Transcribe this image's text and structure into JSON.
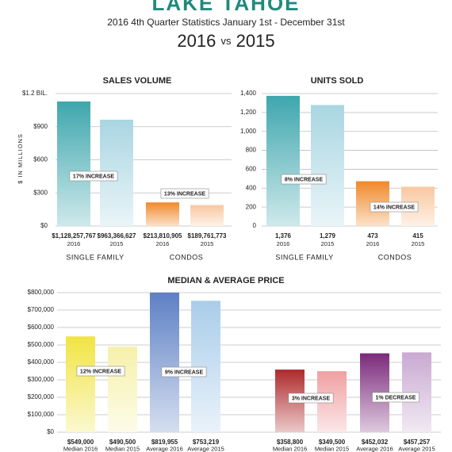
{
  "header": {
    "title": "LAKE TAHOE",
    "subtitle": "2016 4th Quarter Statistics January 1st - December 31st",
    "heading": [
      "2016",
      "vs",
      "2015"
    ]
  },
  "chart_data": [
    {
      "type": "bar",
      "title": "SALES VOLUME",
      "y_label": "$ IN MILLIONS",
      "categories": [
        "2016",
        "2015",
        "2016",
        "2015"
      ],
      "values": [
        1128.257767,
        963.366627,
        213.810905,
        189.761773
      ],
      "value_labels": [
        "$1,128,257,767",
        "$963,366,627",
        "$213,810,905",
        "$189,761,773"
      ],
      "colors": [
        "#3ea7ae",
        "#a9d6e2",
        "#f0892a",
        "#f9c8a0"
      ],
      "groups": [
        "SINGLE FAMILY",
        "CONDOS"
      ],
      "annotations": [
        "17% INCREASE",
        "13% INCREASE"
      ],
      "ylim": [
        0,
        1200
      ],
      "yticks": [
        {
          "value": 0,
          "label": "$0"
        },
        {
          "value": 300,
          "label": "$300"
        },
        {
          "value": 600,
          "label": "$600"
        },
        {
          "value": 900,
          "label": "$900"
        },
        {
          "value": 1200,
          "label": "$1.2 BIL."
        }
      ],
      "grid": true
    },
    {
      "type": "bar",
      "title": "UNITS SOLD",
      "categories": [
        "2016",
        "2015",
        "2016",
        "2015"
      ],
      "values": [
        1376,
        1279,
        473,
        415
      ],
      "value_labels": [
        "1,376",
        "1,279",
        "473",
        "415"
      ],
      "colors": [
        "#3ea7ae",
        "#a9d6e2",
        "#f0892a",
        "#f9c8a0"
      ],
      "groups": [
        "SINGLE FAMILY",
        "CONDOS"
      ],
      "annotations": [
        "8% INCREASE",
        "14% INCREASE"
      ],
      "ylim": [
        0,
        1400
      ],
      "yticks": [
        0,
        200,
        400,
        600,
        800,
        {
          "value": 1000,
          "label": "1,000"
        },
        {
          "value": 1200,
          "label": "1,200"
        },
        {
          "value": 1400,
          "label": "1,400"
        }
      ],
      "grid": true
    },
    {
      "type": "bar",
      "title": "MEDIAN & AVERAGE PRICE",
      "categories": [
        "Median 2016",
        "Median 2015",
        "Average 2016",
        "Average 2015",
        "Median 2016",
        "Median 2015",
        "Average 2016",
        "Average 2015"
      ],
      "values": [
        549000,
        490500,
        819955,
        753219,
        358800,
        349500,
        452032,
        457257
      ],
      "value_labels": [
        "$549,000",
        "$490,500",
        "$819,955",
        "$753,219",
        "$358,800",
        "$349,500",
        "$452,032",
        "$457,257"
      ],
      "colors": [
        "#f1e443",
        "#f6f1aa",
        "#5a7ec3",
        "#a9cdea",
        "#ae2a2c",
        "#f0a0a2",
        "#7b2a7c",
        "#c9a9d2"
      ],
      "annotations": [
        "12% INCREASE",
        "9% INCREASE",
        "3% INCREASE",
        "1% DECREASE"
      ],
      "ylim": [
        0,
        800000
      ],
      "yticks": [
        {
          "value": 0,
          "label": "$0"
        },
        {
          "value": 100000,
          "label": "$100,000"
        },
        {
          "value": 200000,
          "label": "$200,000"
        },
        {
          "value": 300000,
          "label": "$300,000"
        },
        {
          "value": 400000,
          "label": "$400,000"
        },
        {
          "value": 500000,
          "label": "$500,000"
        },
        {
          "value": 600000,
          "label": "$600,000"
        },
        {
          "value": 700000,
          "label": "$700,000"
        },
        {
          "value": 800000,
          "label": "$800,000"
        }
      ],
      "grid": true
    }
  ]
}
